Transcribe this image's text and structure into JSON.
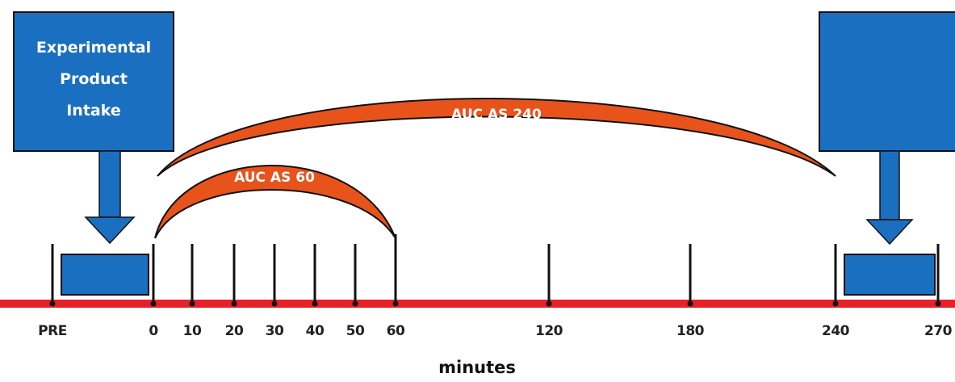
{
  "colors": {
    "box_fill": "#1b6fc1",
    "box_stroke": "#111111",
    "arc_fill": "#e8531c",
    "timeline": "#e8202a",
    "tick": "#111111"
  },
  "intake_box": {
    "lines": [
      "Experimental",
      "Product",
      "Intake"
    ]
  },
  "arcs": {
    "short_label": "AUC AS 60",
    "long_label": "AUC AS 240"
  },
  "timeline": {
    "ticks": [
      "PRE",
      "0",
      "10",
      "20",
      "30",
      "40",
      "50",
      "60",
      "120",
      "180",
      "240",
      "270"
    ],
    "axis_title": "minutes"
  }
}
